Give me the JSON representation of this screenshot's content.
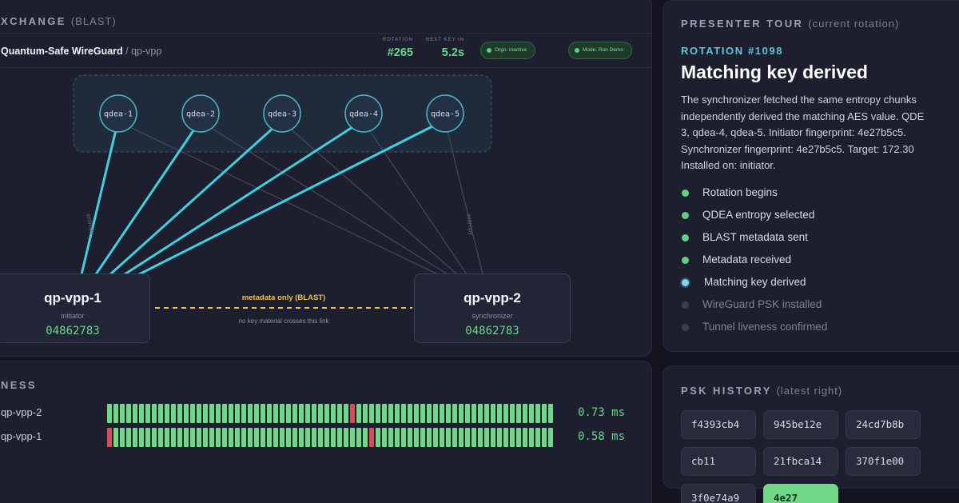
{
  "key_exchange": {
    "title": "XCHANGE",
    "title_sub": "(BLAST)",
    "breadcrumb_main": "Quantum-Safe WireGuard",
    "breadcrumb_sep": " / ",
    "breadcrumb_sub": "qp-vpp",
    "rotation_label": "ROTATION",
    "rotation_value": "#265",
    "next_key_label": "NEXT KEY IN",
    "next_key_value": "5.2s",
    "pill_1": "Orgn: inactive",
    "pill_2": "Mode: Run Demo",
    "qdeas": [
      "qdea-1",
      "qdea-2",
      "qdea-3",
      "qdea-4",
      "qdea-5"
    ],
    "entropy_label": "entropy",
    "initiator": {
      "name": "qp-vpp-1",
      "role": "initiator",
      "fingerprint": "04862783"
    },
    "synchronizer": {
      "name": "qp-vpp-2",
      "role": "synchronizer",
      "fingerprint": "04862783"
    },
    "metadata_label": "metadata only (BLAST)",
    "metadata_note": "no key material crosses this link",
    "accent_color": "#3fd0e0",
    "metadata_color": "#e8c34a"
  },
  "liveness": {
    "title": "NESS",
    "rows": [
      {
        "name": "qp-vpp-2",
        "latency": "0.73 ms",
        "failed_slots": [
          38
        ]
      },
      {
        "name": "qp-vpp-1",
        "latency": "0.58 ms",
        "failed_slots": [
          0,
          41
        ]
      }
    ],
    "slot_count": 70,
    "ok_color": "#6ed887",
    "fail_color": "#d94b56"
  },
  "tour": {
    "title": "PRESENTER TOUR",
    "title_sub": "(current rotation)",
    "rotation": "ROTATION #1098",
    "heading": "Matching key derived",
    "description": "The synchronizer fetched the same entropy chunks\nindependently derived the matching AES value. QDE\n3, qdea-4, qdea-5. Initiator fingerprint: 4e27b5c5.\nSynchronizer fingerprint: 4e27b5c5. Target: 172.30\nInstalled on: initiator.",
    "steps": [
      {
        "label": "Rotation begins",
        "state": "done"
      },
      {
        "label": "QDEA entropy selected",
        "state": "done"
      },
      {
        "label": "BLAST metadata sent",
        "state": "done"
      },
      {
        "label": "Metadata received",
        "state": "done"
      },
      {
        "label": "Matching key derived",
        "state": "current"
      },
      {
        "label": "WireGuard PSK installed",
        "state": "pending"
      },
      {
        "label": "Tunnel liveness confirmed",
        "state": "pending"
      }
    ]
  },
  "psk_history": {
    "title": "PSK HISTORY",
    "title_sub": "(latest right)",
    "chips": [
      "f4393cb4",
      "945be12e",
      "24cd7b8b",
      "cb11",
      "21fbca14",
      "370f1e00",
      "3f0e74a9",
      "4e27"
    ]
  }
}
